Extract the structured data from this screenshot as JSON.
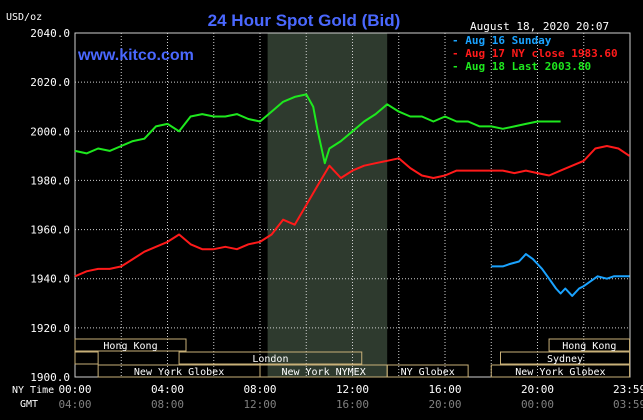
{
  "header": {
    "units": "USD/oz",
    "title": "24 Hour Spot Gold (Bid)",
    "date": "August 18, 2020 20:07",
    "website": "www.kitco.com"
  },
  "colors": {
    "background": "#000000",
    "title": "#4a68ff",
    "website": "#4a68ff",
    "grid": "#d0d0d0",
    "axis_text": "#ffffff",
    "shade": "#2e3a2e",
    "session_box": "#c8b078",
    "session_text": "#ffffff"
  },
  "sessions": [
    {
      "label": "Hong Kong"
    },
    {
      "label": "London"
    },
    {
      "label": "New York Globex"
    },
    {
      "label": "New York NYMEX"
    },
    {
      "label": "NY Globex"
    },
    {
      "label": "Hong Kong"
    },
    {
      "label": "Sydney"
    },
    {
      "label": "New York Globex"
    }
  ],
  "time_axis": {
    "ny_label": "NY Time",
    "gmt_label": "GMT"
  },
  "chart_data": {
    "type": "line",
    "title": "24 Hour Spot Gold (Bid)",
    "ylabel": "USD/oz",
    "ylim": [
      1900,
      2040
    ],
    "yticks": [
      "2040.0",
      "2020.0",
      "2000.0",
      "1980.0",
      "1960.0",
      "1940.0",
      "1920.0",
      "1900.0"
    ],
    "ytick_values": [
      2040,
      2020,
      2000,
      1980,
      1960,
      1940,
      1920,
      1900
    ],
    "xlim": [
      0,
      24
    ],
    "x_unit": "hours (NY Time)",
    "xticks_ny": [
      "00:00",
      "04:00",
      "08:00",
      "12:00",
      "16:00",
      "20:00",
      "23:59"
    ],
    "xticks_gmt": [
      "04:00",
      "08:00",
      "12:00",
      "16:00",
      "20:00",
      "00:00",
      "03:59"
    ],
    "xtick_values": [
      0,
      4,
      8,
      12,
      16,
      20,
      23.98
    ],
    "grid": true,
    "legend_position": "top-right",
    "series": [
      {
        "name": "Aug 16 Sunday",
        "color": "#1aa3ff",
        "x": [
          18.0,
          18.5,
          18.8,
          19.2,
          19.5,
          19.8,
          20.0,
          20.2,
          20.5,
          20.8,
          21.0,
          21.2,
          21.5,
          21.8,
          22.0,
          22.3,
          22.6,
          23.0,
          23.3,
          23.6,
          23.98
        ],
        "y": [
          1945,
          1945,
          1946,
          1947,
          1950,
          1948,
          1946,
          1944,
          1940,
          1936,
          1934,
          1936,
          1933,
          1936,
          1937,
          1939,
          1941,
          1940,
          1941,
          1941,
          1941
        ]
      },
      {
        "name": "Aug 17 NY close 1983.60",
        "color": "#ff1a1a",
        "x": [
          0.0,
          0.5,
          1.0,
          1.5,
          2.0,
          2.5,
          3.0,
          3.5,
          4.0,
          4.5,
          5.0,
          5.5,
          6.0,
          6.5,
          7.0,
          7.5,
          8.0,
          8.5,
          9.0,
          9.5,
          10.0,
          10.5,
          11.0,
          11.5,
          12.0,
          12.5,
          13.0,
          13.5,
          14.0,
          14.5,
          15.0,
          15.5,
          16.0,
          16.5,
          17.0,
          17.5,
          18.0,
          18.5,
          19.0,
          19.5,
          20.0,
          20.5,
          21.0,
          21.5,
          22.0,
          22.5,
          23.0,
          23.5,
          23.98
        ],
        "y": [
          1941,
          1943,
          1944,
          1944,
          1945,
          1948,
          1951,
          1953,
          1955,
          1958,
          1954,
          1952,
          1952,
          1953,
          1952,
          1954,
          1955,
          1958,
          1964,
          1962,
          1970,
          1978,
          1986,
          1981,
          1984,
          1986,
          1987,
          1988,
          1989,
          1985,
          1982,
          1981,
          1982,
          1984,
          1984,
          1984,
          1984,
          1984,
          1983,
          1984,
          1983,
          1982,
          1984,
          1986,
          1988,
          1993,
          1994,
          1993,
          1990
        ]
      },
      {
        "name": "Aug 18 Last 2003.80",
        "color": "#1ee81e",
        "x": [
          0.0,
          0.5,
          1.0,
          1.5,
          2.0,
          2.5,
          3.0,
          3.5,
          4.0,
          4.5,
          5.0,
          5.5,
          6.0,
          6.5,
          7.0,
          7.5,
          8.0,
          8.5,
          9.0,
          9.5,
          10.0,
          10.3,
          10.5,
          10.8,
          11.0,
          11.5,
          12.0,
          12.5,
          13.0,
          13.5,
          14.0,
          14.5,
          15.0,
          15.5,
          16.0,
          16.5,
          17.0,
          17.5,
          18.0,
          18.5,
          19.0,
          19.5,
          20.0,
          20.5,
          21.0
        ],
        "y": [
          1992,
          1991,
          1993,
          1992,
          1994,
          1996,
          1997,
          2002,
          2003,
          2000,
          2006,
          2007,
          2006,
          2006,
          2007,
          2005,
          2004,
          2008,
          2012,
          2014,
          2015,
          2010,
          2000,
          1987,
          1993,
          1996,
          2000,
          2004,
          2007,
          2011,
          2008,
          2006,
          2006,
          2004,
          2006,
          2004,
          2004,
          2002,
          2002,
          2001,
          2002,
          2003,
          2004,
          2004,
          2004
        ]
      }
    ]
  }
}
